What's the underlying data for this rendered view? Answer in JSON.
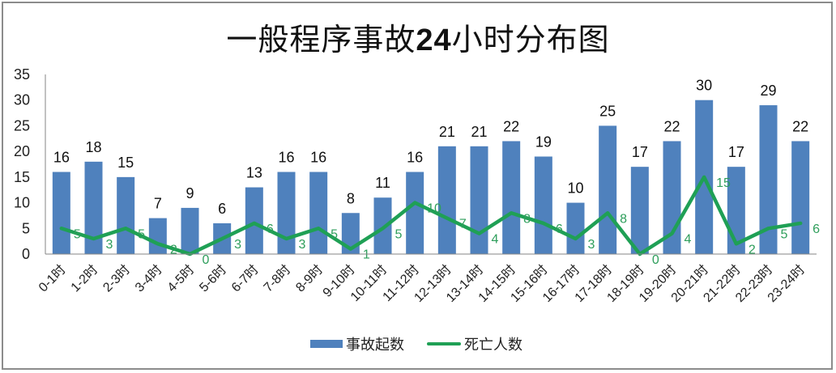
{
  "chart_data": {
    "type": "bar",
    "title": "一般程序事故24小时分布图",
    "title_parts": [
      "一般程序事故",
      "24",
      "小时分布图"
    ],
    "xlabel": "",
    "ylabel": "",
    "ylim": [
      0,
      35
    ],
    "yticks": [
      0,
      5,
      10,
      15,
      20,
      25,
      30,
      35
    ],
    "grid": false,
    "legend_position": "bottom",
    "categories": [
      "0-1时",
      "1-2时",
      "2-3时",
      "3-4时",
      "4-5时",
      "5-6时",
      "6-7时",
      "7-8时",
      "8-9时",
      "9-10时",
      "10-11时",
      "11-12时",
      "12-13时",
      "13-14时",
      "14-15时",
      "15-16时",
      "16-17时",
      "17-18时",
      "18-19时",
      "19-20时",
      "20-21时",
      "21-22时",
      "22-23时",
      "23-24时"
    ],
    "series": [
      {
        "name": "事故起数",
        "type": "bar",
        "color": "#4f81bd",
        "values": [
          16,
          18,
          15,
          7,
          9,
          6,
          13,
          16,
          16,
          8,
          11,
          16,
          21,
          21,
          22,
          19,
          10,
          25,
          17,
          22,
          30,
          17,
          29,
          22
        ]
      },
      {
        "name": "死亡人数",
        "type": "line",
        "color": "#1fa055",
        "values": [
          5,
          3,
          5,
          2,
          0,
          3,
          6,
          3,
          5,
          1,
          5,
          10,
          7,
          4,
          8,
          6,
          3,
          8,
          0,
          4,
          15,
          2,
          5,
          6
        ]
      }
    ]
  },
  "legend": {
    "bar_label": "事故起数",
    "line_label": "死亡人数"
  },
  "colors": {
    "bar": "#4f81bd",
    "line": "#1fa055",
    "line_label": "#2e9e5b",
    "axis": "#868686",
    "frame": "#8c8c8c"
  }
}
